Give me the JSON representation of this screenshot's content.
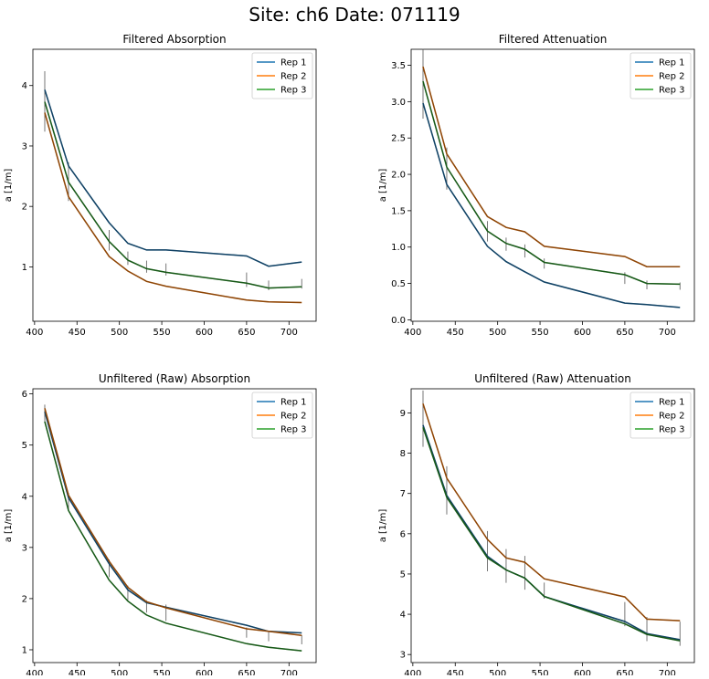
{
  "suptitle": "Site: ch6 Date: 071119",
  "colors": {
    "rep1": "#1f77b4",
    "rep2": "#ff7f0e",
    "rep3": "#2ca02c",
    "axes": "#000000",
    "errbar": "#555555"
  },
  "chart_data": [
    {
      "type": "line",
      "title": "Filtered Absorption",
      "xlabel": "",
      "ylabel": "a [1/m]",
      "xlim": [
        398,
        732
      ],
      "ylim": [
        0.1,
        4.6
      ],
      "xticks": [
        400,
        450,
        500,
        550,
        600,
        650,
        700
      ],
      "yticks": [
        1,
        2,
        3,
        4
      ],
      "ytick_labels": [
        "1",
        "2",
        "3",
        "4"
      ],
      "legend": "top-right",
      "x": [
        412,
        440,
        488,
        510,
        532,
        555,
        650,
        676,
        715
      ],
      "series": [
        {
          "name": "Rep 1",
          "values": [
            3.93,
            2.67,
            1.73,
            1.39,
            1.28,
            1.28,
            1.18,
            1.01,
            1.08
          ]
        },
        {
          "name": "Rep 2",
          "values": [
            3.55,
            2.16,
            1.17,
            0.93,
            0.76,
            0.68,
            0.45,
            0.42,
            0.41
          ]
        },
        {
          "name": "Rep 3",
          "values": [
            3.73,
            2.4,
            1.42,
            1.11,
            0.97,
            0.91,
            0.73,
            0.65,
            0.67
          ]
        }
      ],
      "errorbars": [
        0.5,
        0.32,
        0.17,
        0.11,
        0.1,
        0.1,
        0.12,
        0.08,
        0.08
      ]
    },
    {
      "type": "line",
      "title": "Filtered Attenuation",
      "xlabel": "",
      "ylabel": "a [1/m]",
      "xlim": [
        398,
        732
      ],
      "ylim": [
        -0.02,
        3.72
      ],
      "xticks": [
        400,
        450,
        500,
        550,
        600,
        650,
        700
      ],
      "yticks": [
        0.0,
        0.5,
        1.0,
        1.5,
        2.0,
        2.5,
        3.0,
        3.5
      ],
      "ytick_labels": [
        "0.0",
        "0.5",
        "1.0",
        "1.5",
        "2.0",
        "2.5",
        "3.0",
        "3.5"
      ],
      "legend": "top-right",
      "x": [
        412,
        440,
        488,
        510,
        532,
        555,
        650,
        676,
        715
      ],
      "series": [
        {
          "name": "Rep 1",
          "values": [
            2.98,
            1.86,
            1.01,
            0.8,
            0.66,
            0.52,
            0.23,
            0.21,
            0.17
          ]
        },
        {
          "name": "Rep 2",
          "values": [
            3.48,
            2.28,
            1.42,
            1.27,
            1.21,
            1.01,
            0.87,
            0.73,
            0.73
          ]
        },
        {
          "name": "Rep 3",
          "values": [
            3.28,
            2.1,
            1.22,
            1.05,
            0.97,
            0.79,
            0.62,
            0.5,
            0.49
          ]
        }
      ],
      "errorbars": [
        0.48,
        0.29,
        0.14,
        0.09,
        0.09,
        0.07,
        0.08,
        0.06,
        0.05
      ]
    },
    {
      "type": "line",
      "title": "Unfiltered (Raw) Absorption",
      "xlabel": "",
      "ylabel": "a [1/m]",
      "xlim": [
        398,
        732
      ],
      "ylim": [
        0.75,
        6.1
      ],
      "xticks": [
        400,
        450,
        500,
        550,
        600,
        650,
        700
      ],
      "yticks": [
        1,
        2,
        3,
        4,
        5,
        6
      ],
      "ytick_labels": [
        "1",
        "2",
        "3",
        "4",
        "5",
        "6"
      ],
      "legend": "top-right",
      "x": [
        412,
        440,
        488,
        510,
        532,
        555,
        650,
        676,
        715
      ],
      "series": [
        {
          "name": "Rep 1",
          "values": [
            5.65,
            3.97,
            2.68,
            2.17,
            1.92,
            1.83,
            1.48,
            1.36,
            1.33
          ]
        },
        {
          "name": "Rep 2",
          "values": [
            5.72,
            4.02,
            2.73,
            2.22,
            1.94,
            1.82,
            1.41,
            1.36,
            1.28
          ]
        },
        {
          "name": "Rep 3",
          "values": [
            5.46,
            3.72,
            2.36,
            1.95,
            1.68,
            1.52,
            1.12,
            1.05,
            0.98
          ]
        }
      ],
      "errorbars": [
        0.18,
        0.16,
        0.17,
        0.14,
        0.12,
        0.16,
        0.1,
        0.09,
        0.09
      ]
    },
    {
      "type": "line",
      "title": "Unfiltered (Raw) Attenuation",
      "xlabel": "",
      "ylabel": "a [1/m]",
      "xlim": [
        398,
        732
      ],
      "ylim": [
        2.8,
        9.6
      ],
      "xticks": [
        400,
        450,
        500,
        550,
        600,
        650,
        700
      ],
      "yticks": [
        3,
        4,
        5,
        6,
        7,
        8,
        9
      ],
      "ytick_labels": [
        "3",
        "4",
        "5",
        "6",
        "7",
        "8",
        "9"
      ],
      "legend": "top-right",
      "x": [
        412,
        440,
        488,
        510,
        532,
        555,
        650,
        676,
        715
      ],
      "series": [
        {
          "name": "Rep 1",
          "values": [
            8.7,
            6.95,
            5.44,
            5.1,
            4.9,
            4.44,
            3.82,
            3.52,
            3.37
          ]
        },
        {
          "name": "Rep 2",
          "values": [
            9.23,
            7.38,
            5.86,
            5.4,
            5.29,
            4.88,
            4.43,
            3.88,
            3.84
          ]
        },
        {
          "name": "Rep 3",
          "values": [
            8.64,
            6.9,
            5.4,
            5.1,
            4.9,
            4.44,
            3.76,
            3.5,
            3.34
          ]
        }
      ],
      "errorbars": [
        0.7,
        0.6,
        0.5,
        0.42,
        0.42,
        0.2,
        0.3,
        0.3,
        0.3
      ]
    }
  ]
}
